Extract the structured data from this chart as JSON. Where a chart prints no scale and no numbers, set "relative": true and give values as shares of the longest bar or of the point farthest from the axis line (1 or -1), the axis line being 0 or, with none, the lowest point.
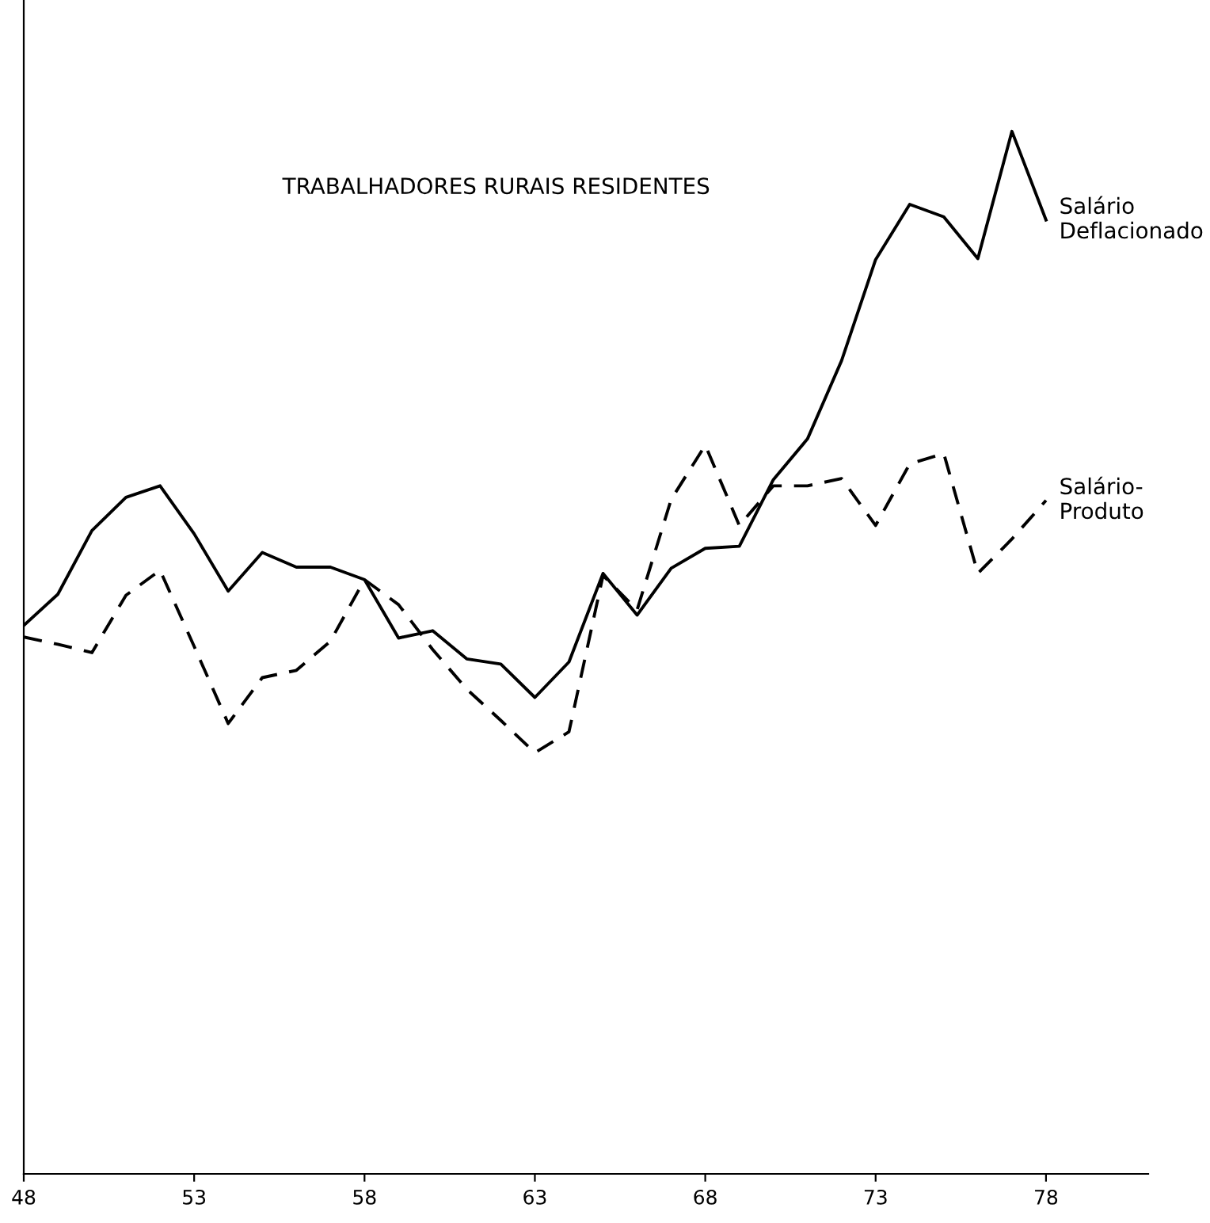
{
  "chart_data": {
    "type": "line",
    "title": "TRABALHADORES RURAIS RESIDENTES",
    "relative": true,
    "legend": false,
    "grid": false,
    "tick_labels": "x",
    "x": [
      48,
      49,
      50,
      51,
      52,
      53,
      54,
      55,
      56,
      57,
      58,
      59,
      60,
      61,
      62,
      63,
      64,
      65,
      66,
      67,
      68,
      69,
      70,
      71,
      72,
      73,
      74,
      75,
      76,
      77,
      78
    ],
    "xlim": [
      48,
      81
    ],
    "xticks": [
      48,
      53,
      58,
      63,
      68,
      73,
      78
    ],
    "series": [
      {
        "name": "Salário\nDeflacionado",
        "color": "#000000",
        "line_style": "solid",
        "values": [
          0.526,
          0.556,
          0.617,
          0.649,
          0.66,
          0.614,
          0.559,
          0.596,
          0.582,
          0.582,
          0.57,
          0.514,
          0.521,
          0.494,
          0.489,
          0.457,
          0.491,
          0.576,
          0.536,
          0.581,
          0.6,
          0.602,
          0.666,
          0.705,
          0.78,
          0.877,
          0.93,
          0.918,
          0.878,
          1,
          0.915
        ]
      },
      {
        "name": "Salário-\nProduto",
        "color": "#000000",
        "line_style": "dashed",
        "values": [
          0.515,
          0.508,
          0.5,
          0.555,
          0.579,
          0.506,
          0.432,
          0.476,
          0.483,
          0.511,
          0.57,
          0.546,
          0.503,
          0.465,
          0.435,
          0.404,
          0.424,
          0.574,
          0.541,
          0.647,
          0.699,
          0.622,
          0.66,
          0.66,
          0.667,
          0.622,
          0.681,
          0.691,
          0.576,
          0.609,
          0.646
        ]
      }
    ]
  }
}
